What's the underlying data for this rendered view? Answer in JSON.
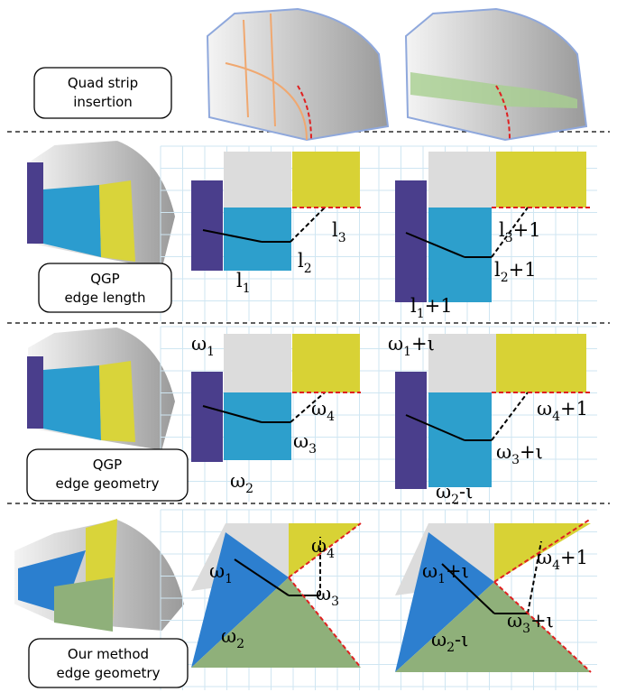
{
  "rows": [
    {
      "label": [
        "Quad strip",
        "insertion"
      ]
    },
    {
      "label": [
        "QGP",
        "edge length"
      ],
      "panels": [
        [
          {
            "base": "l",
            "sub": "1"
          },
          {
            "base": "l",
            "sub": "2"
          },
          {
            "base": "l",
            "sub": "3"
          }
        ],
        [
          {
            "base": "l",
            "sub": "1",
            "suffix": "+1"
          },
          {
            "base": "l",
            "sub": "2",
            "suffix": "+1"
          },
          {
            "base": "l",
            "sub": "3",
            "suffix": "+1"
          }
        ]
      ]
    },
    {
      "label": [
        "QGP",
        "edge geometry"
      ],
      "panels": [
        [
          {
            "base": "ω",
            "sub": "1"
          },
          {
            "base": "ω",
            "sub": "4"
          },
          {
            "base": "ω",
            "sub": "3"
          },
          {
            "base": "ω",
            "sub": "2"
          }
        ],
        [
          {
            "base": "ω",
            "sub": "1",
            "suffix": "+ι"
          },
          {
            "base": "ω",
            "sub": "4",
            "suffix": "+1"
          },
          {
            "base": "ω",
            "sub": "3",
            "suffix": "+ι"
          },
          {
            "base": "ω",
            "sub": "2",
            "suffix": "-ι"
          }
        ]
      ]
    },
    {
      "label": [
        "Our method",
        "edge geometry"
      ],
      "panels": [
        [
          {
            "base": "ω",
            "sub": "1"
          },
          {
            "base": "ω",
            "sub": "4"
          },
          {
            "base": "ω",
            "sub": "3"
          },
          {
            "base": "ω",
            "sub": "2"
          }
        ],
        [
          {
            "base": "ω",
            "sub": "1",
            "suffix": "+ι"
          },
          {
            "base": "ω",
            "sub": "4",
            "suffix": "+1"
          },
          {
            "base": "ω",
            "sub": "3",
            "suffix": "+ι"
          },
          {
            "base": "ω",
            "sub": "2",
            "suffix": "-ι"
          }
        ]
      ]
    }
  ]
}
